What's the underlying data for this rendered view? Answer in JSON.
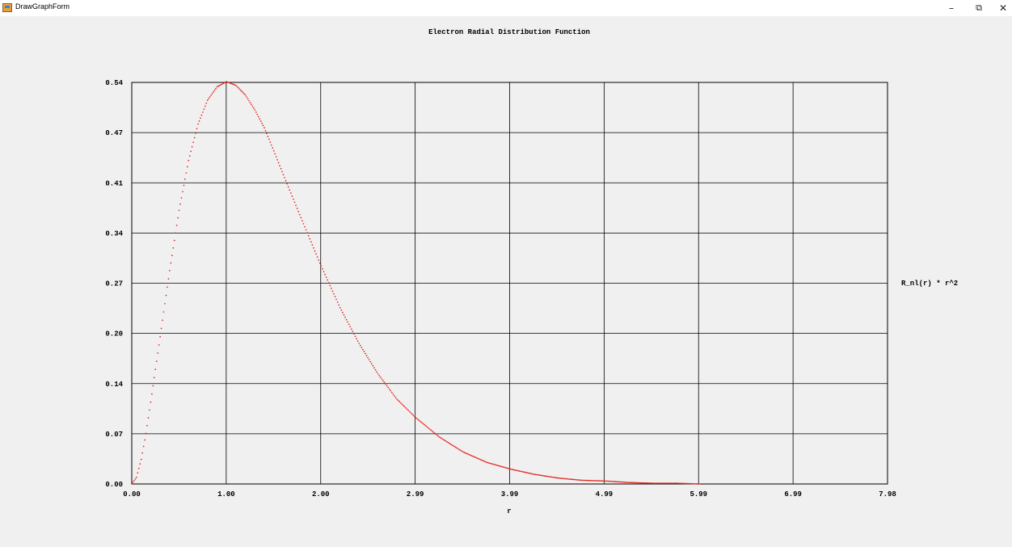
{
  "window": {
    "title": "DrawGraphForm",
    "min_glyph": "–",
    "max_glyph": "⧉",
    "close_glyph": "✕"
  },
  "colors": {
    "curve": "#e0231b",
    "grid": "#000000",
    "background": "#f0f0f0"
  },
  "chart_data": {
    "type": "scatter",
    "title": "Electron Radial Distribution Function",
    "xlabel": "r",
    "ylabel": "R_nl(r) * r^2",
    "xlim": [
      0.0,
      7.98
    ],
    "ylim": [
      0.0,
      0.54
    ],
    "x_tick_labels": [
      "0.00",
      "1.00",
      "2.00",
      "2.99",
      "3.99",
      "4.99",
      "5.99",
      "6.99",
      "7.98"
    ],
    "y_tick_labels": [
      "0.00",
      "0.07",
      "0.14",
      "0.20",
      "0.27",
      "0.34",
      "0.41",
      "0.47",
      "0.54"
    ],
    "grid": true,
    "series": [
      {
        "x": [
          0.0,
          0.05,
          0.1,
          0.15,
          0.2,
          0.3,
          0.4,
          0.5,
          0.6,
          0.7,
          0.8,
          0.9,
          1.0,
          1.1,
          1.2,
          1.3,
          1.4,
          1.5,
          1.6,
          1.8,
          2.0,
          2.2,
          2.4,
          2.6,
          2.8,
          3.0,
          3.25,
          3.5,
          3.75,
          4.0,
          4.25,
          4.5,
          4.75,
          5.0,
          5.25,
          5.5,
          5.75,
          6.0
        ],
        "y": [
          0.0,
          0.009,
          0.033,
          0.068,
          0.11,
          0.198,
          0.287,
          0.368,
          0.435,
          0.484,
          0.516,
          0.534,
          0.541,
          0.536,
          0.523,
          0.503,
          0.479,
          0.448,
          0.416,
          0.354,
          0.293,
          0.237,
          0.189,
          0.148,
          0.114,
          0.089,
          0.063,
          0.043,
          0.029,
          0.02,
          0.013,
          0.008,
          0.005,
          0.004,
          0.002,
          0.001,
          0.001,
          0.0
        ]
      }
    ]
  }
}
